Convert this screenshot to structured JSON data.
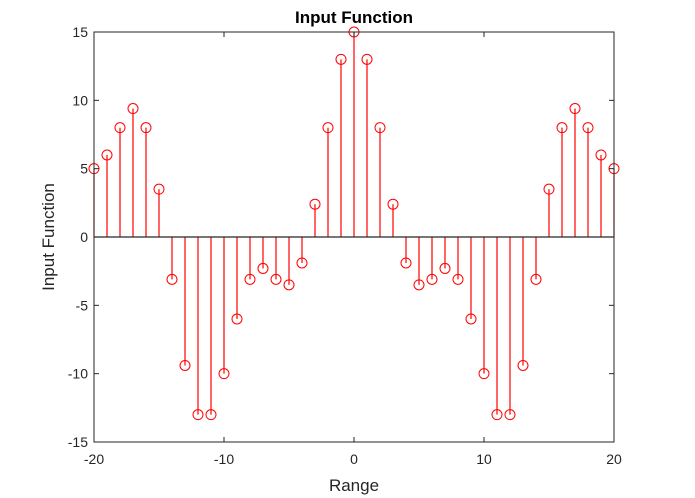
{
  "chart_data": {
    "type": "stem",
    "title": "Input Function",
    "xlabel": "Range",
    "ylabel": "Input Function",
    "xlim": [
      -20,
      20
    ],
    "ylim": [
      -15,
      15
    ],
    "x_ticks": [
      -20,
      -10,
      0,
      10,
      20
    ],
    "y_ticks": [
      -15,
      -10,
      -5,
      0,
      5,
      10,
      15
    ],
    "x_tick_labels": [
      "-20",
      "-10",
      "0",
      "10",
      "20"
    ],
    "y_tick_labels": [
      "-15",
      "-10",
      "-5",
      "0",
      "5",
      "10",
      "15"
    ],
    "grid": false,
    "box": true,
    "series": [
      {
        "color": "#ff0000",
        "marker": "open-circle",
        "x": [
          -20,
          -19,
          -18,
          -17,
          -16,
          -15,
          -14,
          -13,
          -12,
          -11,
          -10,
          -9,
          -8,
          -7,
          -6,
          -5,
          -4,
          -3,
          -2,
          -1,
          0,
          1,
          2,
          3,
          4,
          5,
          6,
          7,
          8,
          9,
          10,
          11,
          12,
          13,
          14,
          15,
          16,
          17,
          18,
          19,
          20
        ],
        "y": [
          5,
          6,
          8,
          9.4,
          8,
          3.5,
          -3.1,
          -9.4,
          -13,
          -13,
          -10,
          -6,
          -3.1,
          -2.3,
          -3.1,
          -3.5,
          -1.9,
          2.4,
          8,
          13,
          15,
          13,
          8,
          2.4,
          -1.9,
          -3.5,
          -3.1,
          -2.3,
          -3.1,
          -6,
          -10,
          -13,
          -13,
          -9.4,
          -3.1,
          3.5,
          8,
          9.4,
          8,
          6,
          5
        ]
      }
    ]
  }
}
